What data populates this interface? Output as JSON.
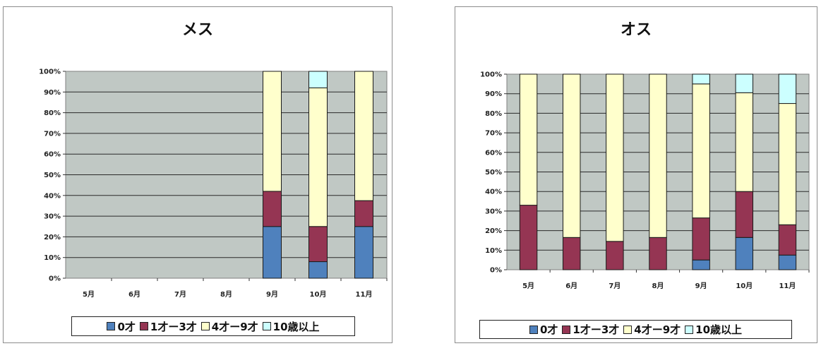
{
  "chart_data": [
    {
      "type": "bar",
      "stacked": true,
      "title": "メス",
      "categories": [
        "5月",
        "6月",
        "7月",
        "8月",
        "9月",
        "10月",
        "11月"
      ],
      "series": [
        {
          "name": "0才",
          "color": "#4f81bd",
          "values": [
            0,
            0,
            0,
            0,
            25,
            8,
            25
          ]
        },
        {
          "name": "1才ー3才",
          "color": "#953553",
          "values": [
            0,
            0,
            0,
            0,
            17,
            17,
            12.5
          ]
        },
        {
          "name": "4才ー9才",
          "color": "#ffffcc",
          "values": [
            0,
            0,
            0,
            0,
            58,
            67,
            62.5
          ]
        },
        {
          "name": "10歳以上",
          "color": "#ccffff",
          "values": [
            0,
            0,
            0,
            0,
            0,
            8,
            0
          ]
        }
      ],
      "ylim": [
        0,
        100
      ],
      "yticks": [
        "0%",
        "10%",
        "20%",
        "30%",
        "40%",
        "50%",
        "60%",
        "70%",
        "80%",
        "90%",
        "100%"
      ],
      "grid": true,
      "legend_position": "bottom",
      "plot_background": "#c0c8c4"
    },
    {
      "type": "bar",
      "stacked": true,
      "title": "オス",
      "categories": [
        "5月",
        "6月",
        "7月",
        "8月",
        "9月",
        "10月",
        "11月"
      ],
      "series": [
        {
          "name": "0才",
          "color": "#4f81bd",
          "values": [
            0,
            0,
            0,
            0,
            5,
            16.5,
            7.5
          ]
        },
        {
          "name": "1才ー3才",
          "color": "#953553",
          "values": [
            33,
            16.5,
            14.5,
            16.5,
            21.5,
            23.5,
            15.5
          ]
        },
        {
          "name": "4才ー9才",
          "color": "#ffffcc",
          "values": [
            67,
            83.5,
            85.5,
            83.5,
            68.5,
            50.5,
            62
          ]
        },
        {
          "name": "10歳以上",
          "color": "#ccffff",
          "values": [
            0,
            0,
            0,
            0,
            5,
            9.5,
            15
          ]
        }
      ],
      "ylim": [
        0,
        100
      ],
      "yticks": [
        "0%",
        "10%",
        "20%",
        "30%",
        "40%",
        "50%",
        "60%",
        "70%",
        "80%",
        "90%",
        "100%"
      ],
      "grid": true,
      "legend_position": "bottom",
      "plot_background": "#c0c8c4"
    }
  ]
}
